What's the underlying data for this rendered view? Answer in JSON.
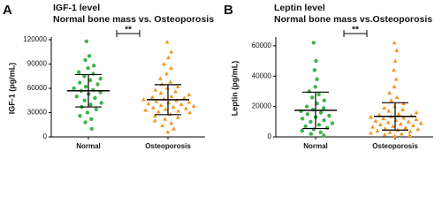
{
  "chart_data": [
    {
      "type": "dot",
      "letter": "A",
      "title": "IGF-1 level",
      "subtitle": "Normal bone mass vs. Osteoporosis",
      "y_label": "IGF-1 (pg/mL)",
      "ylim": [
        0,
        120000
      ],
      "yticks": [
        0,
        30000,
        60000,
        90000,
        120000
      ],
      "significance": "**",
      "series": [
        {
          "name": "Normal",
          "color": "#3db54a",
          "marker": "circle",
          "mean": 57000,
          "sd": 20000,
          "values": [
            118000,
            100000,
            95000,
            88000,
            85000,
            80000,
            78000,
            75000,
            72000,
            70000,
            67000,
            65000,
            62000,
            60000,
            58000,
            57000,
            55000,
            53000,
            50000,
            48000,
            45000,
            42000,
            40000,
            37000,
            34000,
            30000,
            26000,
            22000,
            18000,
            10000
          ]
        },
        {
          "name": "Osteoporosis",
          "color": "#f7941d",
          "marker": "triangle",
          "mean": 46000,
          "sd": 18500,
          "values": [
            117000,
            105000,
            98000,
            90000,
            85000,
            78000,
            72000,
            68000,
            65000,
            62000,
            60000,
            58000,
            56000,
            54000,
            52000,
            50000,
            49000,
            48000,
            47000,
            46000,
            45000,
            44000,
            43000,
            42000,
            41000,
            40000,
            39000,
            38000,
            37000,
            36000,
            35000,
            34000,
            33000,
            32000,
            31000,
            30000,
            28000,
            26000,
            24000,
            22000,
            20000,
            17000,
            14000,
            10000,
            6000
          ]
        }
      ]
    },
    {
      "type": "dot",
      "letter": "B",
      "title": "Leptin level",
      "subtitle": "Normal bone mass vs.Osteoporosis",
      "y_label": "Leptin (pg/mL)",
      "ylim": [
        0,
        64000
      ],
      "yticks": [
        0,
        20000,
        40000,
        60000
      ],
      "significance": "**",
      "series": [
        {
          "name": "Normal",
          "color": "#3db54a",
          "marker": "circle",
          "mean": 17500,
          "sd": 12000,
          "values": [
            62000,
            50000,
            44000,
            38000,
            33000,
            30000,
            28000,
            26000,
            24000,
            22000,
            20000,
            19000,
            18000,
            17000,
            16000,
            15000,
            14000,
            13000,
            12000,
            11000,
            10000,
            9000,
            8000,
            7000,
            6000,
            5000,
            4000,
            3000,
            2000,
            1000
          ]
        },
        {
          "name": "Osteoporosis",
          "color": "#f7941d",
          "marker": "triangle",
          "mean": 13500,
          "sd": 9000,
          "values": [
            62000,
            57000,
            50000,
            44000,
            38000,
            33000,
            29000,
            26000,
            24000,
            22000,
            20000,
            19000,
            18000,
            17000,
            16000,
            15000,
            14500,
            14000,
            13500,
            13000,
            12500,
            12000,
            11500,
            11000,
            10500,
            10000,
            9500,
            9000,
            8500,
            8000,
            7500,
            7000,
            6500,
            6000,
            5500,
            5000,
            4500,
            4000,
            3500,
            3000,
            2500,
            2000,
            1500,
            1000,
            500
          ]
        }
      ]
    }
  ]
}
